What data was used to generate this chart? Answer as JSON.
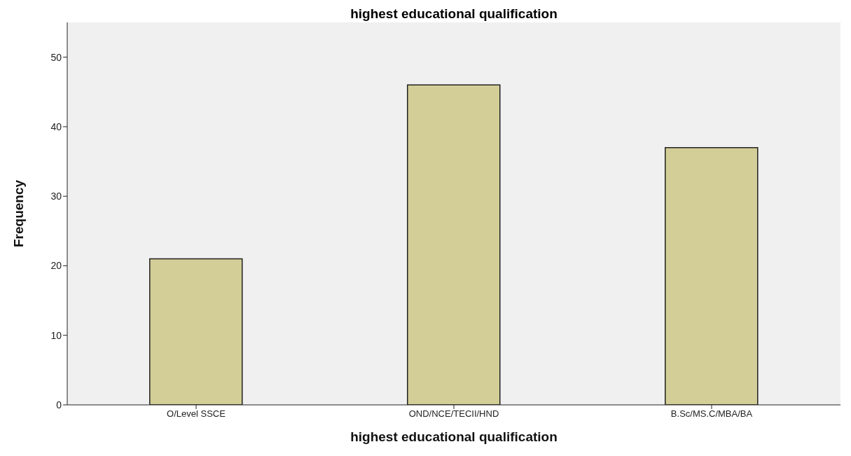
{
  "chart_data": {
    "type": "bar",
    "title": "highest educational qualification",
    "xlabel": "highest educational qualification",
    "ylabel": "Frequency",
    "categories": [
      "O/Level SSCE",
      "OND/NCE/TECII/HND",
      "B.Sc/MS.C/MBA/BA"
    ],
    "values": [
      21,
      46,
      37
    ],
    "color": "#d3ce97",
    "ylim": [
      0,
      55
    ],
    "yticks": [
      0,
      10,
      20,
      30,
      40,
      50
    ],
    "grid": false
  }
}
